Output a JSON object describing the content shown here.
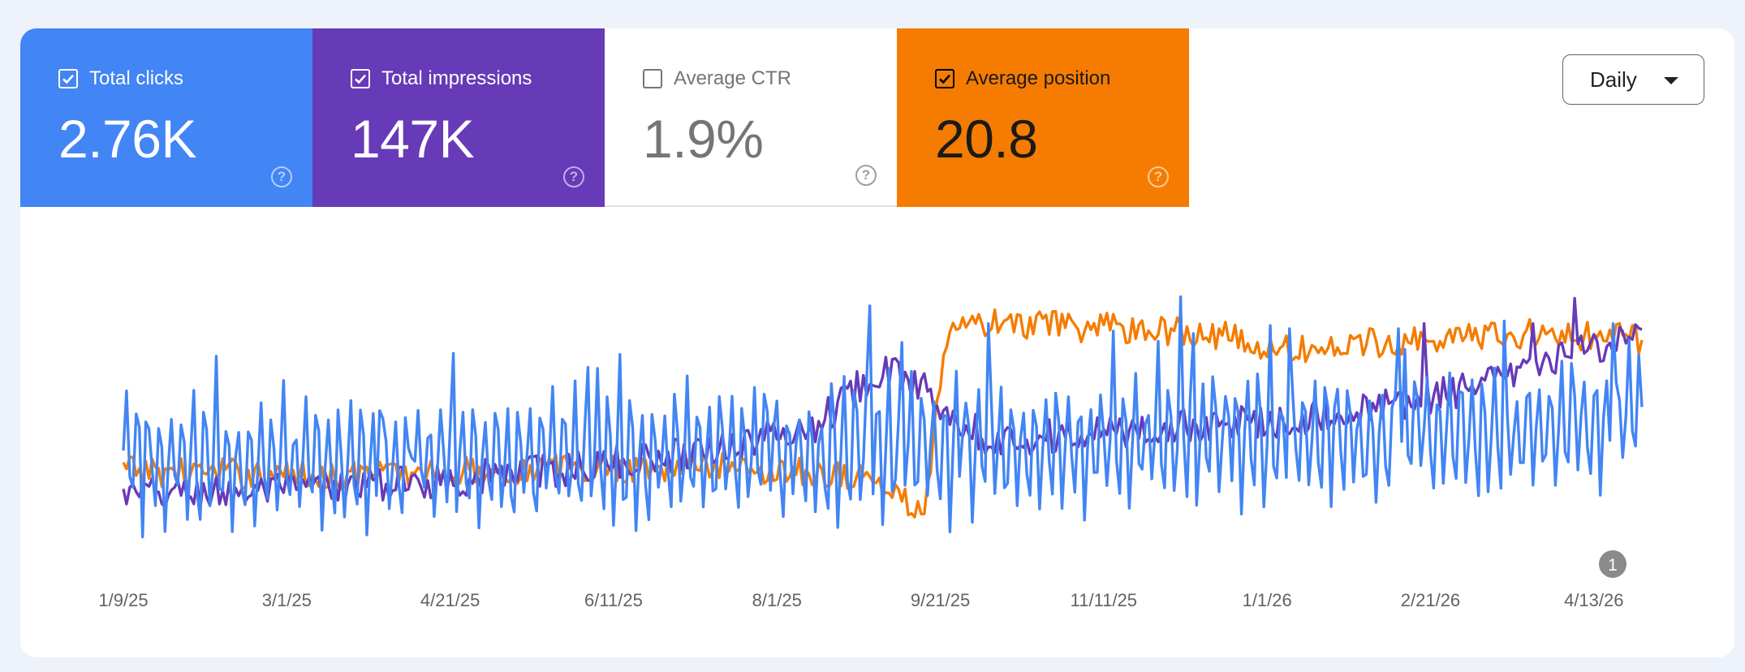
{
  "metrics": {
    "clicks": {
      "label": "Total clicks",
      "value": "2.76K",
      "checked": true,
      "color": "#4285f4"
    },
    "impressions": {
      "label": "Total impressions",
      "value": "147K",
      "checked": true,
      "color": "#673ab7"
    },
    "ctr": {
      "label": "Average CTR",
      "value": "1.9%",
      "checked": false,
      "color": "#ffffff"
    },
    "position": {
      "label": "Average position",
      "value": "20.8",
      "checked": true,
      "color": "#f57c00"
    },
    "help_glyph": "?"
  },
  "period_select": {
    "value": "Daily"
  },
  "annotation": {
    "label": "1"
  },
  "chart_data": {
    "type": "line",
    "x_start": "1/9/25",
    "x_end": "4/28/26",
    "x_tick_labels": [
      "1/9/25",
      "3/1/25",
      "4/21/25",
      "6/11/25",
      "8/1/25",
      "9/21/25",
      "11/11/25",
      "1/1/26",
      "2/21/26",
      "4/13/26"
    ],
    "y_axis_shown": false,
    "gridlines": false,
    "independent_y_scales": true,
    "series": [
      {
        "name": "Total clicks",
        "color": "#4285f4",
        "anchors": [
          [
            0,
            0.32
          ],
          [
            60,
            0.3
          ],
          [
            120,
            0.32
          ],
          [
            180,
            0.34
          ],
          [
            240,
            0.36
          ],
          [
            300,
            0.38
          ],
          [
            360,
            0.4
          ],
          [
            420,
            0.42
          ],
          [
            474,
            0.48
          ]
        ],
        "amplitude": 0.22,
        "spikes": [
          [
            233,
            0.93
          ],
          [
            270,
            0.86
          ],
          [
            309,
            0.83
          ],
          [
            364,
            0.84
          ],
          [
            398,
            0.84
          ],
          [
            431,
            0.87
          ],
          [
            465,
            0.86
          ]
        ]
      },
      {
        "name": "Total impressions",
        "color": "#673ab7",
        "anchors": [
          [
            0,
            0.18
          ],
          [
            50,
            0.2
          ],
          [
            100,
            0.24
          ],
          [
            150,
            0.3
          ],
          [
            190,
            0.38
          ],
          [
            215,
            0.45
          ],
          [
            235,
            0.68
          ],
          [
            248,
            0.62
          ],
          [
            270,
            0.4
          ],
          [
            300,
            0.42
          ],
          [
            330,
            0.45
          ],
          [
            360,
            0.48
          ],
          [
            390,
            0.52
          ],
          [
            420,
            0.6
          ],
          [
            440,
            0.68
          ],
          [
            462,
            0.78
          ],
          [
            474,
            0.82
          ]
        ],
        "amplitude": 0.07,
        "spikes": [
          [
            453,
            0.96
          ],
          [
            440,
            0.86
          ],
          [
            406,
            0.86
          ]
        ]
      },
      {
        "name": "Average position",
        "color": "#f57c00",
        "anchors": [
          [
            0,
            0.28
          ],
          [
            60,
            0.26
          ],
          [
            120,
            0.28
          ],
          [
            180,
            0.3
          ],
          [
            230,
            0.26
          ],
          [
            250,
            0.12
          ],
          [
            256,
            0.7
          ],
          [
            260,
            0.86
          ],
          [
            320,
            0.84
          ],
          [
            340,
            0.82
          ],
          [
            360,
            0.75
          ],
          [
            380,
            0.77
          ],
          [
            400,
            0.8
          ],
          [
            440,
            0.82
          ],
          [
            474,
            0.8
          ]
        ],
        "amplitude": 0.06,
        "spikes": []
      }
    ]
  }
}
